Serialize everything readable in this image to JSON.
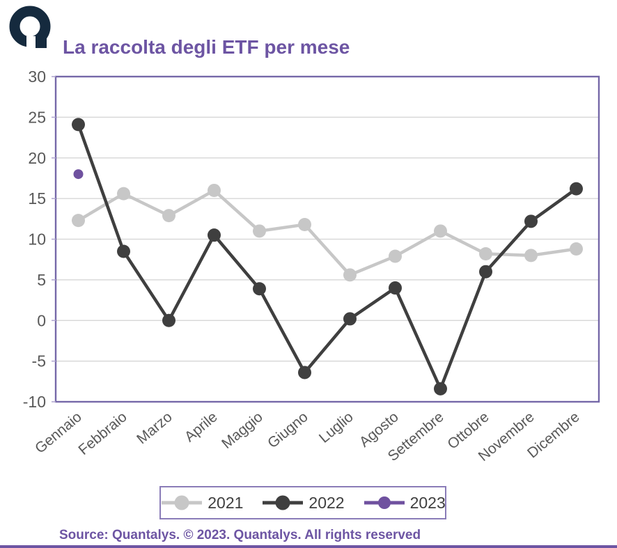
{
  "header": {
    "logo_icon": "quantalys-logo",
    "title": "La raccolta degli ETF per mese"
  },
  "chart_data": {
    "type": "line",
    "title": "La raccolta degli ETF per mese",
    "categories": [
      "Gennaio",
      "Febbraio",
      "Marzo",
      "Aprile",
      "Maggio",
      "Giugno",
      "Luglio",
      "Agosto",
      "Settembre",
      "Ottobre",
      "Novembre",
      "Dicembre"
    ],
    "series": [
      {
        "name": "2021",
        "color": "#c7c7c7",
        "values": [
          12.3,
          15.6,
          12.9,
          16.0,
          11.0,
          11.8,
          5.6,
          7.9,
          11.0,
          8.2,
          8.0,
          8.8
        ]
      },
      {
        "name": "2022",
        "color": "#3f3f3f",
        "values": [
          24.1,
          8.5,
          0.0,
          10.5,
          3.9,
          -6.4,
          0.2,
          4.0,
          -8.4,
          6.0,
          12.2,
          16.2
        ]
      },
      {
        "name": "2023",
        "color": "#6f519f",
        "values": [
          18.0,
          null,
          null,
          null,
          null,
          null,
          null,
          null,
          null,
          null,
          null,
          null
        ]
      }
    ],
    "ylim": [
      -10,
      30
    ],
    "yticks": [
      30,
      25,
      20,
      15,
      10,
      5,
      0,
      -5,
      -10
    ],
    "grid": true,
    "legend_position": "bottom",
    "xlabel": "",
    "ylabel": ""
  },
  "legend": {
    "items": [
      "2021",
      "2022",
      "2023"
    ]
  },
  "footer": {
    "source": "Source: Quantalys. © 2023. Quantalys. All rights reserved"
  },
  "colors": {
    "title": "#6d55a3",
    "axis_border": "#7568a8",
    "gridline": "#d9d9d9",
    "tick_label": "#595959",
    "legend_border": "#8a7cb8",
    "logo": "#152a3e",
    "bottom_rule": "#6d55a3"
  }
}
